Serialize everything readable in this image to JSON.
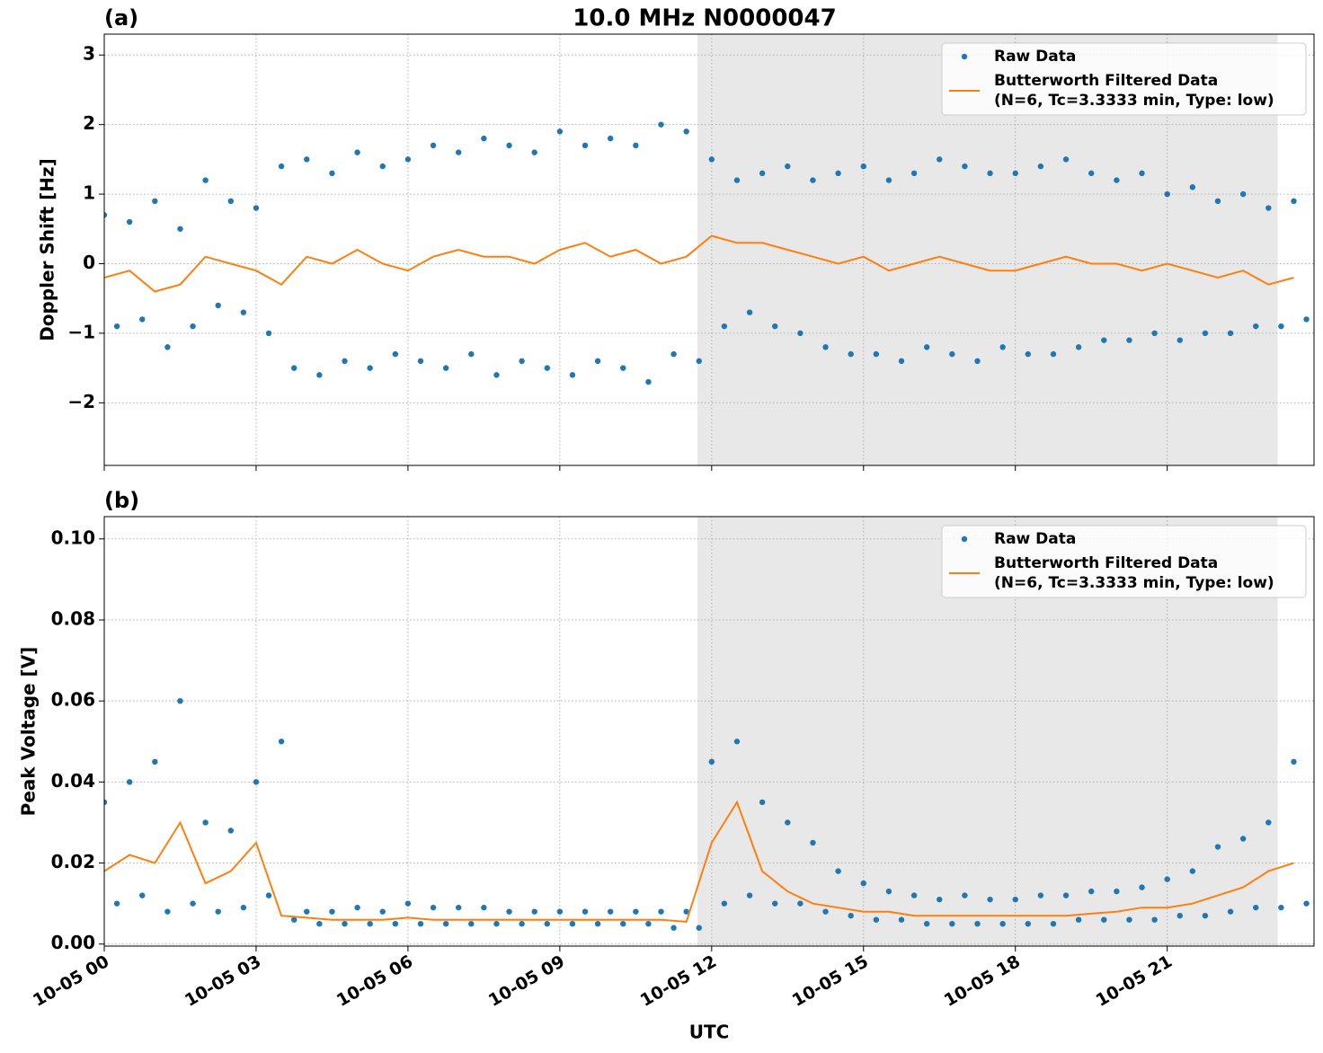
{
  "title": "10.0 MHz N0000047",
  "chart_data": [
    {
      "type": "scatter",
      "panel_label": "(a)",
      "ylabel": "Doppler Shift [Hz]",
      "sharex": true,
      "grid": true,
      "legend": "upper right",
      "xlim": [
        0,
        23.9
      ],
      "ylim": [
        -2.9,
        3.3
      ],
      "yticks": [
        {
          "value": -2,
          "label": "−2"
        },
        {
          "value": -1,
          "label": "−1"
        },
        0,
        1,
        2,
        3
      ],
      "shade": {
        "xlim": [
          11.72,
          23.18
        ],
        "color": "#e8e8e8"
      },
      "series": [
        {
          "name": "Raw Data",
          "kind": "scatter",
          "color": "#1f77b4",
          "x": [
            0,
            0.25,
            0.5,
            0.75,
            1,
            1.25,
            1.5,
            1.75,
            2,
            2.25,
            2.5,
            2.75,
            3,
            3.25,
            3.5,
            3.75,
            4,
            4.25,
            4.5,
            4.75,
            5,
            5.25,
            5.5,
            5.75,
            6,
            6.25,
            6.5,
            6.75,
            7,
            7.25,
            7.5,
            7.75,
            8,
            8.25,
            8.5,
            8.75,
            9,
            9.25,
            9.5,
            9.75,
            10,
            10.25,
            10.5,
            10.75,
            11,
            11.25,
            11.5,
            11.75,
            12,
            12.25,
            12.5,
            12.75,
            13,
            13.25,
            13.5,
            13.75,
            14,
            14.25,
            14.5,
            14.75,
            15,
            15.25,
            15.5,
            15.75,
            16,
            16.25,
            16.5,
            16.75,
            17,
            17.25,
            17.5,
            17.75,
            18,
            18.25,
            18.5,
            18.75,
            19,
            19.25,
            19.5,
            19.75,
            20,
            20.25,
            20.5,
            20.75,
            21,
            21.25,
            21.5,
            21.75,
            22,
            22.25,
            22.5,
            22.75,
            23,
            23.25,
            23.5,
            23.75
          ],
          "values": [
            0.7,
            -0.9,
            0.6,
            -0.8,
            0.9,
            -1.2,
            0.5,
            -0.9,
            1.2,
            -0.6,
            0.9,
            -0.7,
            0.8,
            -1.0,
            1.4,
            -1.5,
            1.5,
            -1.6,
            1.3,
            -1.4,
            1.6,
            -1.5,
            1.4,
            -1.3,
            1.5,
            -1.4,
            1.7,
            -1.5,
            1.6,
            -1.3,
            1.8,
            -1.6,
            1.7,
            -1.4,
            1.6,
            -1.5,
            1.9,
            -1.6,
            1.7,
            -1.4,
            1.8,
            -1.5,
            1.7,
            -1.7,
            2.0,
            -1.3,
            1.9,
            -1.4,
            1.5,
            -0.9,
            1.2,
            -0.7,
            1.3,
            -0.9,
            1.4,
            -1.0,
            1.2,
            -1.2,
            1.3,
            -1.3,
            1.4,
            -1.3,
            1.2,
            -1.4,
            1.3,
            -1.2,
            1.5,
            -1.3,
            1.4,
            -1.4,
            1.3,
            -1.2,
            1.3,
            -1.3,
            1.4,
            -1.3,
            1.5,
            -1.2,
            1.3,
            -1.1,
            1.2,
            -1.1,
            1.3,
            -1.0,
            1.0,
            -1.1,
            1.1,
            -1.0,
            0.9,
            -1.0,
            1.0,
            -0.9,
            0.8,
            -0.9,
            0.9,
            -0.8
          ]
        },
        {
          "name": "Butterworth Filtered Data\n(N=6, Tc=3.3333 min, Type: low)",
          "kind": "line",
          "color": "#ff7f0e",
          "x": [
            0,
            0.5,
            1,
            1.5,
            2,
            2.5,
            3,
            3.5,
            4,
            4.5,
            5,
            5.5,
            6,
            6.5,
            7,
            7.5,
            8,
            8.5,
            9,
            9.5,
            10,
            10.5,
            11,
            11.5,
            12,
            12.5,
            13,
            13.5,
            14,
            14.5,
            15,
            15.5,
            16,
            16.5,
            17,
            17.5,
            18,
            18.5,
            19,
            19.5,
            20,
            20.5,
            21,
            21.5,
            22,
            22.5,
            23,
            23.5
          ],
          "values": [
            -0.2,
            -0.1,
            -0.4,
            -0.3,
            0.1,
            0.0,
            -0.1,
            -0.3,
            0.1,
            0.0,
            0.2,
            0.0,
            -0.1,
            0.1,
            0.2,
            0.1,
            0.1,
            0.0,
            0.2,
            0.3,
            0.1,
            0.2,
            0.0,
            0.1,
            0.4,
            0.3,
            0.3,
            0.2,
            0.1,
            0.0,
            0.1,
            -0.1,
            0.0,
            0.1,
            0.0,
            -0.1,
            -0.1,
            0.0,
            0.1,
            0.0,
            0.0,
            -0.1,
            0.0,
            -0.1,
            -0.2,
            -0.1,
            -0.3,
            -0.2
          ]
        }
      ]
    },
    {
      "type": "scatter",
      "panel_label": "(b)",
      "ylabel": "Peak Voltage [V]",
      "xlabel": "UTC",
      "grid": true,
      "legend": "upper right",
      "xlim": [
        0,
        23.9
      ],
      "ylim": [
        -0.0005,
        0.1055
      ],
      "xticks": [
        {
          "value": 0,
          "label": "10-05 00"
        },
        {
          "value": 3,
          "label": "10-05 03"
        },
        {
          "value": 6,
          "label": "10-05 06"
        },
        {
          "value": 9,
          "label": "10-05 09"
        },
        {
          "value": 12,
          "label": "10-05 12"
        },
        {
          "value": 15,
          "label": "10-05 15"
        },
        {
          "value": 18,
          "label": "10-05 18"
        },
        {
          "value": 21,
          "label": "10-05 21"
        }
      ],
      "yticks": [
        {
          "value": 0,
          "label": "0.00"
        },
        {
          "value": 0.02,
          "label": "0.02"
        },
        {
          "value": 0.04,
          "label": "0.04"
        },
        {
          "value": 0.06,
          "label": "0.06"
        },
        {
          "value": 0.08,
          "label": "0.08"
        },
        {
          "value": 0.1,
          "label": "0.10"
        }
      ],
      "shade": {
        "xlim": [
          11.72,
          23.18
        ],
        "color": "#e8e8e8"
      },
      "series": [
        {
          "name": "Raw Data",
          "kind": "scatter",
          "color": "#1f77b4",
          "x": [
            0,
            0.25,
            0.5,
            0.75,
            1,
            1.25,
            1.5,
            1.75,
            2,
            2.25,
            2.5,
            2.75,
            3,
            3.25,
            3.5,
            3.75,
            4,
            4.25,
            4.5,
            4.75,
            5,
            5.25,
            5.5,
            5.75,
            6,
            6.25,
            6.5,
            6.75,
            7,
            7.25,
            7.5,
            7.75,
            8,
            8.25,
            8.5,
            8.75,
            9,
            9.25,
            9.5,
            9.75,
            10,
            10.25,
            10.5,
            10.75,
            11,
            11.25,
            11.5,
            11.75,
            12,
            12.25,
            12.5,
            12.75,
            13,
            13.25,
            13.5,
            13.75,
            14,
            14.25,
            14.5,
            14.75,
            15,
            15.25,
            15.5,
            15.75,
            16,
            16.25,
            16.5,
            16.75,
            17,
            17.25,
            17.5,
            17.75,
            18,
            18.25,
            18.5,
            18.75,
            19,
            19.25,
            19.5,
            19.75,
            20,
            20.25,
            20.5,
            20.75,
            21,
            21.25,
            21.5,
            21.75,
            22,
            22.25,
            22.5,
            22.75,
            23,
            23.25,
            23.5,
            23.75
          ],
          "values": [
            0.035,
            0.01,
            0.04,
            0.012,
            0.045,
            0.008,
            0.06,
            0.01,
            0.03,
            0.008,
            0.028,
            0.009,
            0.04,
            0.012,
            0.05,
            0.006,
            0.008,
            0.005,
            0.008,
            0.005,
            0.009,
            0.005,
            0.008,
            0.005,
            0.01,
            0.005,
            0.009,
            0.005,
            0.009,
            0.005,
            0.009,
            0.005,
            0.008,
            0.005,
            0.008,
            0.005,
            0.008,
            0.005,
            0.008,
            0.005,
            0.008,
            0.005,
            0.008,
            0.005,
            0.008,
            0.004,
            0.008,
            0.004,
            0.045,
            0.01,
            0.05,
            0.012,
            0.035,
            0.01,
            0.03,
            0.01,
            0.025,
            0.008,
            0.018,
            0.007,
            0.015,
            0.006,
            0.013,
            0.006,
            0.012,
            0.005,
            0.011,
            0.005,
            0.012,
            0.005,
            0.011,
            0.005,
            0.011,
            0.005,
            0.012,
            0.005,
            0.012,
            0.006,
            0.013,
            0.006,
            0.013,
            0.006,
            0.014,
            0.006,
            0.016,
            0.007,
            0.018,
            0.007,
            0.024,
            0.008,
            0.026,
            0.009,
            0.03,
            0.009,
            0.045,
            0.01
          ]
        },
        {
          "name": "Butterworth Filtered Data\n(N=6, Tc=3.3333 min, Type: low)",
          "kind": "line",
          "color": "#ff7f0e",
          "x": [
            0,
            0.5,
            1,
            1.5,
            2,
            2.5,
            3,
            3.5,
            4,
            4.5,
            5,
            5.5,
            6,
            6.5,
            7,
            7.5,
            8,
            8.5,
            9,
            9.5,
            10,
            10.5,
            11,
            11.5,
            12,
            12.5,
            13,
            13.5,
            14,
            14.5,
            15,
            15.5,
            16,
            16.5,
            17,
            17.5,
            18,
            18.5,
            19,
            19.5,
            20,
            20.5,
            21,
            21.5,
            22,
            22.5,
            23,
            23.5
          ],
          "values": [
            0.018,
            0.022,
            0.02,
            0.03,
            0.015,
            0.018,
            0.025,
            0.007,
            0.0065,
            0.006,
            0.006,
            0.006,
            0.0065,
            0.006,
            0.006,
            0.006,
            0.006,
            0.006,
            0.006,
            0.006,
            0.006,
            0.006,
            0.006,
            0.0055,
            0.025,
            0.035,
            0.018,
            0.013,
            0.01,
            0.009,
            0.008,
            0.008,
            0.007,
            0.007,
            0.007,
            0.007,
            0.007,
            0.007,
            0.007,
            0.0075,
            0.008,
            0.009,
            0.009,
            0.01,
            0.012,
            0.014,
            0.018,
            0.02
          ]
        }
      ]
    }
  ]
}
